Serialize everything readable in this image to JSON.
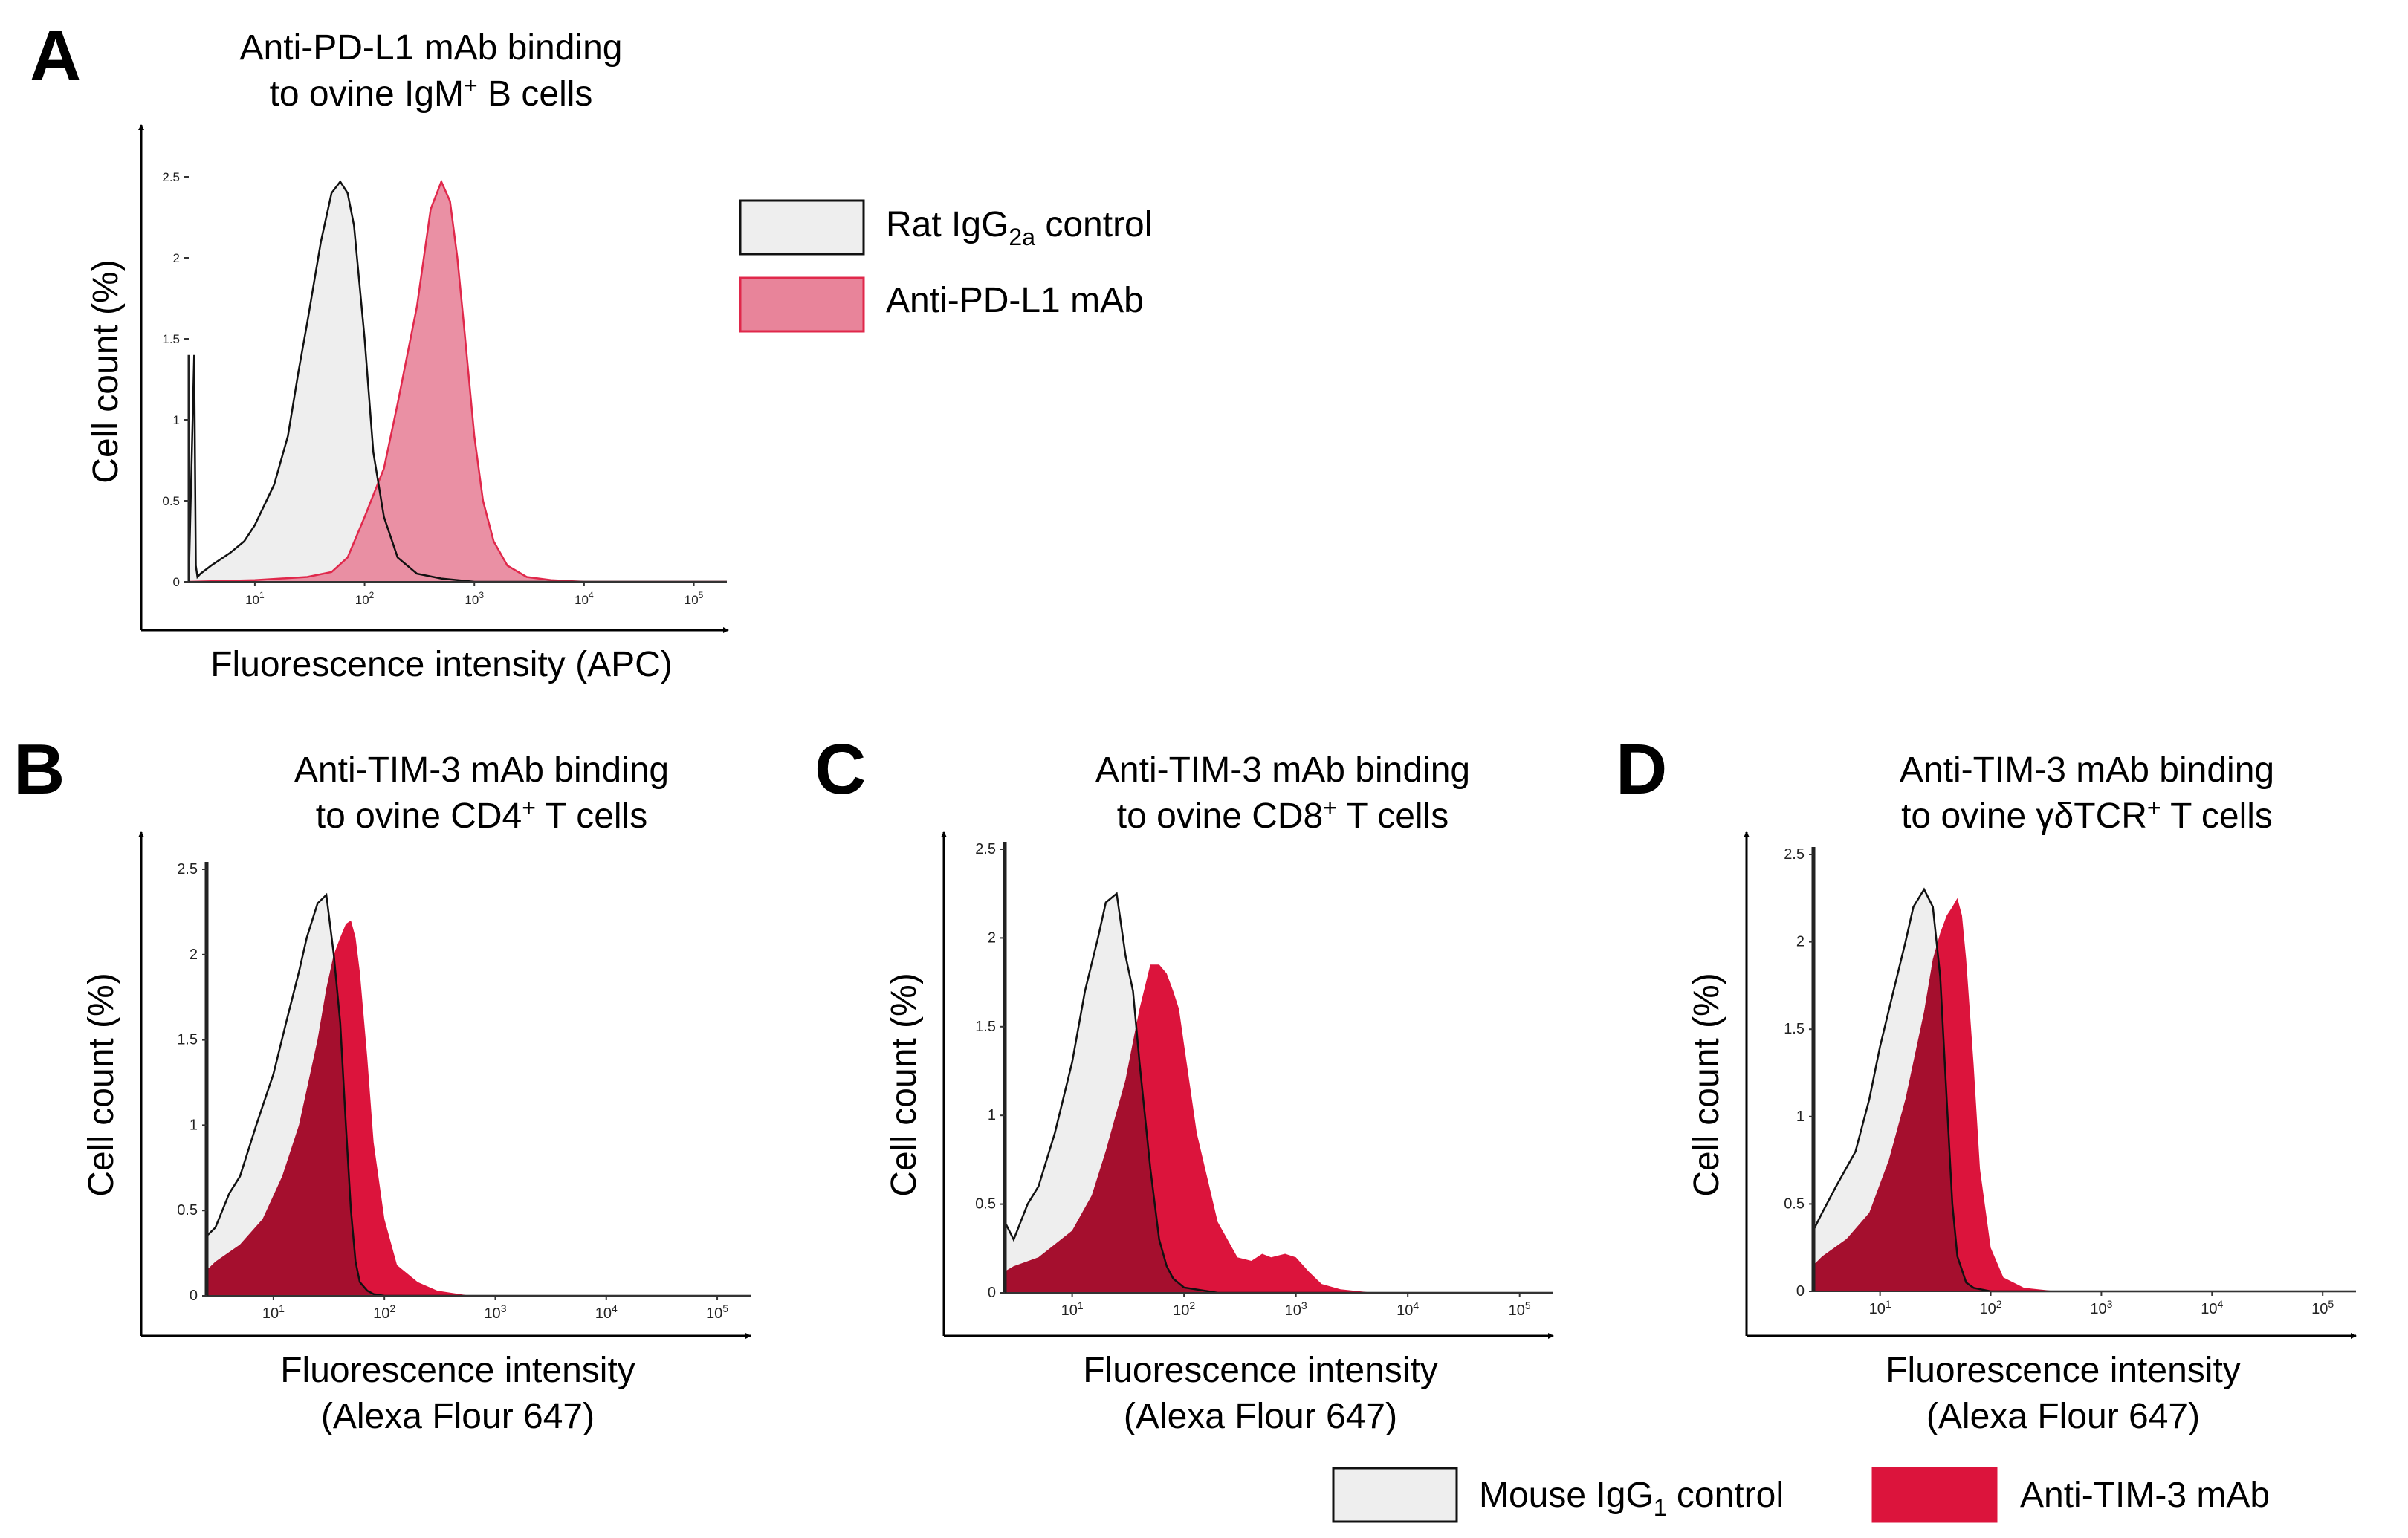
{
  "colors": {
    "control_fill": "#eeeeee",
    "control_stroke": "#111111",
    "pdl1_fill": "#e8849a",
    "pdl1_stroke": "#e0284b",
    "tim3_fill": "#dc143c",
    "overlap_fill": "#a50f2e",
    "axis": "#000000"
  },
  "legends": {
    "a": {
      "control": {
        "pre": "Rat IgG",
        "sub": "2a",
        "post": " control"
      },
      "antibody": "Anti-PD-L1 mAb"
    },
    "bcd": {
      "control": {
        "pre": "Mouse IgG",
        "sub": "1",
        "post": " control"
      },
      "antibody": "Anti-TIM-3 mAb"
    }
  },
  "chart_data": [
    {
      "panel": "A",
      "type": "area",
      "title_line1": "Anti-PD-L1 mAb binding",
      "title_line2": {
        "pre": "to ovine IgM",
        "sup": "+",
        "post": " B cells"
      },
      "xlabel": "Fluorescence intensity (APC)",
      "xlabel_line2": "",
      "ylabel": "Cell count (%)",
      "xscale": "log10",
      "xlim": [
        2.5,
        200000
      ],
      "ylim": [
        0,
        2.5
      ],
      "yticks": [
        0,
        0.5,
        1,
        1.5,
        2,
        2.5
      ],
      "ytick_labels": [
        "0",
        "0.5",
        "1",
        "1.5",
        "2",
        "2.5"
      ],
      "xticks": [
        10,
        100,
        1000,
        10000,
        100000
      ],
      "xtick_labels": [
        "10",
        "10",
        "10",
        "10",
        "10"
      ],
      "xtick_exps": [
        "1",
        "2",
        "3",
        "4",
        "5"
      ],
      "series": [
        {
          "name": "Rat IgG2a control",
          "role": "control",
          "x": [
            2.5,
            2.8,
            2.9,
            3.0,
            3.2,
            4,
            6,
            8,
            10,
            15,
            20,
            25,
            30,
            40,
            50,
            60,
            70,
            80,
            100,
            120,
            150,
            200,
            300,
            500,
            1000,
            200000
          ],
          "y": [
            0,
            1.4,
            0.1,
            0.03,
            0.05,
            0.1,
            0.18,
            0.25,
            0.35,
            0.6,
            0.9,
            1.3,
            1.6,
            2.1,
            2.4,
            2.47,
            2.4,
            2.2,
            1.5,
            0.8,
            0.4,
            0.15,
            0.05,
            0.02,
            0,
            0
          ]
        },
        {
          "name": "Anti-PD-L1 mAb",
          "role": "antibody",
          "x": [
            2.5,
            10,
            30,
            50,
            70,
            100,
            150,
            200,
            300,
            400,
            500,
            600,
            700,
            800,
            1000,
            1200,
            1500,
            2000,
            3000,
            5000,
            10000,
            200000
          ],
          "y": [
            0,
            0.01,
            0.03,
            0.06,
            0.15,
            0.4,
            0.7,
            1.1,
            1.7,
            2.3,
            2.47,
            2.35,
            2.0,
            1.6,
            0.9,
            0.5,
            0.25,
            0.1,
            0.03,
            0.01,
            0,
            0
          ]
        }
      ]
    },
    {
      "panel": "B",
      "type": "area",
      "title_line1": "Anti-TIM-3 mAb binding",
      "title_line2": {
        "pre": "to ovine CD4",
        "sup": "+",
        "post": " T cells"
      },
      "xlabel": "Fluorescence intensity",
      "xlabel_line2": "(Alexa Flour 647)",
      "ylabel": "Cell count (%)",
      "xscale": "log10",
      "xlim": [
        2.5,
        200000
      ],
      "ylim": [
        0,
        2.5
      ],
      "yticks": [
        0,
        0.5,
        1,
        1.5,
        2,
        2.5
      ],
      "ytick_labels": [
        "0",
        "0.5",
        "1",
        "1.5",
        "2",
        "2.5"
      ],
      "xticks": [
        10,
        100,
        1000,
        10000,
        100000
      ],
      "xtick_labels": [
        "10",
        "10",
        "10",
        "10",
        "10"
      ],
      "xtick_exps": [
        "1",
        "2",
        "3",
        "4",
        "5"
      ],
      "series": [
        {
          "name": "Mouse IgG1 control",
          "role": "control",
          "x": [
            2.5,
            3,
            4,
            5,
            7,
            10,
            13,
            17,
            20,
            25,
            30,
            35,
            40,
            45,
            50,
            55,
            60,
            70,
            80,
            100,
            200000
          ],
          "y": [
            0.35,
            0.4,
            0.6,
            0.7,
            1.0,
            1.3,
            1.6,
            1.9,
            2.1,
            2.3,
            2.35,
            2.0,
            1.6,
            1.0,
            0.5,
            0.2,
            0.08,
            0.03,
            0.01,
            0,
            0
          ]
        },
        {
          "name": "Anti-TIM-3 mAb",
          "role": "antibody",
          "x": [
            2.5,
            3,
            5,
            8,
            12,
            17,
            25,
            30,
            35,
            40,
            45,
            50,
            55,
            60,
            70,
            80,
            100,
            130,
            200,
            300,
            600,
            200000
          ],
          "y": [
            0.15,
            0.2,
            0.3,
            0.45,
            0.7,
            1.0,
            1.5,
            1.8,
            2.0,
            2.1,
            2.18,
            2.2,
            2.1,
            1.9,
            1.4,
            0.9,
            0.45,
            0.18,
            0.08,
            0.03,
            0,
            0
          ]
        }
      ]
    },
    {
      "panel": "C",
      "type": "area",
      "title_line1": "Anti-TIM-3 mAb binding",
      "title_line2": {
        "pre": "to ovine CD8",
        "sup": "+",
        "post": " T cells"
      },
      "xlabel": "Fluorescence intensity",
      "xlabel_line2": "(Alexa Flour 647)",
      "ylabel": "Cell count (%)",
      "xscale": "log10",
      "xlim": [
        2.5,
        200000
      ],
      "ylim": [
        0,
        2.5
      ],
      "yticks": [
        0,
        0.5,
        1,
        1.5,
        2,
        2.5
      ],
      "ytick_labels": [
        "0",
        "0.5",
        "1",
        "1.5",
        "2",
        "2.5"
      ],
      "xticks": [
        10,
        100,
        1000,
        10000,
        100000
      ],
      "xtick_labels": [
        "10",
        "10",
        "10",
        "10",
        "10"
      ],
      "xtick_exps": [
        "1",
        "2",
        "3",
        "4",
        "5"
      ],
      "series": [
        {
          "name": "Mouse IgG1 control",
          "role": "control",
          "x": [
            2.5,
            3,
            4,
            5,
            7,
            10,
            13,
            17,
            20,
            25,
            30,
            35,
            40,
            50,
            60,
            70,
            80,
            100,
            200,
            200000
          ],
          "y": [
            0.4,
            0.3,
            0.5,
            0.6,
            0.9,
            1.3,
            1.7,
            2.0,
            2.2,
            2.25,
            1.9,
            1.7,
            1.3,
            0.7,
            0.3,
            0.15,
            0.08,
            0.03,
            0,
            0
          ]
        },
        {
          "name": "Anti-TIM-3 mAb",
          "role": "antibody",
          "x": [
            2.5,
            3,
            5,
            10,
            15,
            20,
            30,
            40,
            50,
            60,
            70,
            80,
            90,
            100,
            130,
            200,
            300,
            400,
            500,
            600,
            800,
            1000,
            1300,
            1700,
            2500,
            5000,
            200000
          ],
          "y": [
            0.12,
            0.15,
            0.2,
            0.35,
            0.55,
            0.8,
            1.2,
            1.6,
            1.85,
            1.85,
            1.8,
            1.7,
            1.6,
            1.4,
            0.9,
            0.4,
            0.2,
            0.18,
            0.22,
            0.2,
            0.22,
            0.2,
            0.12,
            0.05,
            0.02,
            0,
            0
          ]
        }
      ]
    },
    {
      "panel": "D",
      "type": "area",
      "title_line1": "Anti-TIM-3 mAb binding",
      "title_line2": {
        "pre": "to ovine γδTCR",
        "sup": "+",
        "post": " T cells"
      },
      "xlabel": "Fluorescence intensity",
      "xlabel_line2": "(Alexa Flour 647)",
      "ylabel": "Cell count (%)",
      "xscale": "log10",
      "xlim": [
        2.5,
        200000
      ],
      "ylim": [
        0,
        2.5
      ],
      "yticks": [
        0,
        0.5,
        1,
        1.5,
        2,
        2.5
      ],
      "ytick_labels": [
        "0",
        "0.5",
        "1",
        "1.5",
        "2",
        "2.5"
      ],
      "xticks": [
        10,
        100,
        1000,
        10000,
        100000
      ],
      "xtick_labels": [
        "10",
        "10",
        "10",
        "10",
        "10"
      ],
      "xtick_exps": [
        "1",
        "2",
        "3",
        "4",
        "5"
      ],
      "series": [
        {
          "name": "Mouse IgG1 control",
          "role": "control",
          "x": [
            2.5,
            3,
            4,
            6,
            8,
            10,
            13,
            17,
            20,
            25,
            30,
            35,
            40,
            45,
            50,
            60,
            70,
            100,
            200000
          ],
          "y": [
            0.35,
            0.45,
            0.6,
            0.8,
            1.1,
            1.4,
            1.7,
            2.0,
            2.2,
            2.3,
            2.2,
            1.8,
            1.1,
            0.5,
            0.2,
            0.05,
            0.02,
            0,
            0
          ]
        },
        {
          "name": "Anti-TIM-3 mAb",
          "role": "antibody",
          "x": [
            2.5,
            3,
            5,
            8,
            12,
            17,
            25,
            30,
            35,
            40,
            45,
            50,
            55,
            60,
            70,
            80,
            100,
            130,
            200,
            400,
            200000
          ],
          "y": [
            0.15,
            0.2,
            0.3,
            0.45,
            0.75,
            1.1,
            1.6,
            1.9,
            2.05,
            2.15,
            2.2,
            2.25,
            2.15,
            1.9,
            1.3,
            0.7,
            0.25,
            0.08,
            0.02,
            0,
            0
          ]
        }
      ]
    }
  ]
}
